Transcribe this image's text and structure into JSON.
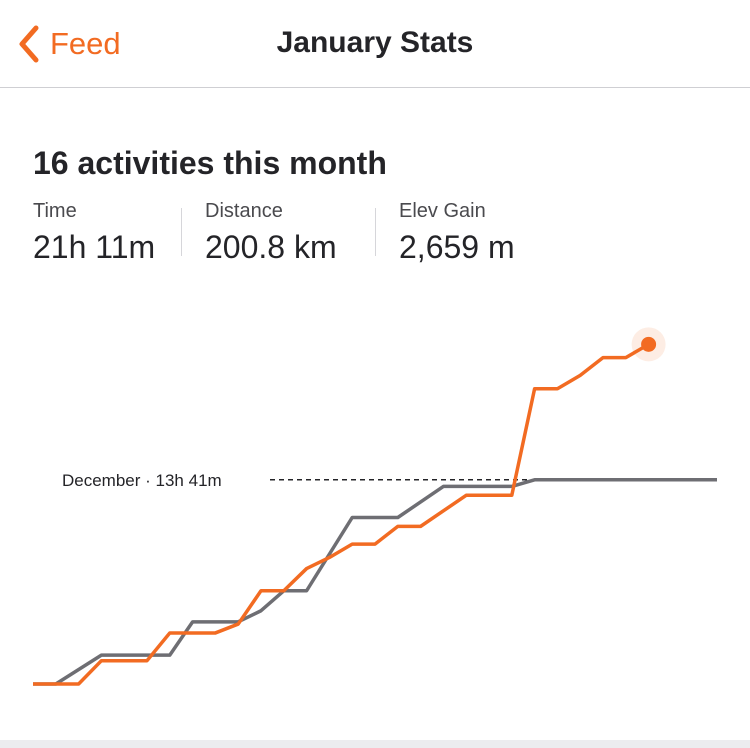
{
  "nav": {
    "back_label": "Feed",
    "title": "January Stats"
  },
  "summary": {
    "title": "16 activities this month"
  },
  "stats": [
    {
      "label": "Time",
      "value": "21h 11m"
    },
    {
      "label": "Distance",
      "value": "200.8 km"
    },
    {
      "label": "Elev Gain",
      "value": "2,659 m"
    }
  ],
  "colors": {
    "accent": "#f26b22",
    "current_series": "#f26b22",
    "previous_series": "#6e6e73"
  },
  "chart_data": {
    "type": "line",
    "reference": {
      "label": "December · 13h 41m",
      "line_style": "dashed"
    },
    "grid": false,
    "axes_visible": false,
    "series": [
      {
        "role": "current",
        "points": [
          [
            0,
            0
          ],
          [
            2,
            0
          ],
          [
            3,
            0.105
          ],
          [
            5,
            0.105
          ],
          [
            6,
            0.23
          ],
          [
            8,
            0.23
          ],
          [
            9,
            0.27
          ],
          [
            10,
            0.42
          ],
          [
            11,
            0.42
          ],
          [
            12,
            0.52
          ],
          [
            13,
            0.57
          ],
          [
            14,
            0.63
          ],
          [
            15,
            0.63
          ],
          [
            16,
            0.71
          ],
          [
            17,
            0.71
          ],
          [
            18,
            0.78
          ],
          [
            19,
            0.85
          ],
          [
            21,
            0.85
          ],
          [
            22,
            1.33
          ],
          [
            23,
            1.33
          ],
          [
            24,
            1.39
          ],
          [
            25,
            1.47
          ],
          [
            26,
            1.47
          ],
          [
            27,
            1.53
          ]
        ]
      },
      {
        "role": "previous",
        "points": [
          [
            0,
            0
          ],
          [
            1,
            0
          ],
          [
            3,
            0.13
          ],
          [
            6,
            0.13
          ],
          [
            7,
            0.28
          ],
          [
            9,
            0.28
          ],
          [
            10,
            0.33
          ],
          [
            11,
            0.42
          ],
          [
            12,
            0.42
          ],
          [
            14,
            0.75
          ],
          [
            16,
            0.75
          ],
          [
            18,
            0.89
          ],
          [
            21,
            0.89
          ],
          [
            22,
            0.92
          ],
          [
            24,
            0.92
          ],
          [
            30,
            0.92
          ]
        ]
      }
    ]
  }
}
